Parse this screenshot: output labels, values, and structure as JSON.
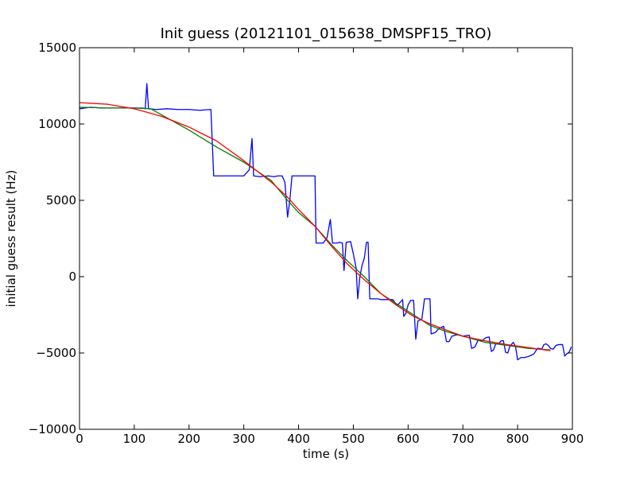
{
  "chart_data": {
    "type": "line",
    "title": "Init guess (20121101_015638_DMSPF15_TRO)",
    "xlabel": "time (s)",
    "ylabel": "initial guess result (Hz)",
    "xlim": [
      0,
      900
    ],
    "ylim": [
      -10000,
      15000
    ],
    "xticks": [
      "0",
      "100",
      "200",
      "300",
      "400",
      "500",
      "600",
      "700",
      "800",
      "900"
    ],
    "yticks": [
      "15000",
      "10000",
      "5000",
      "0",
      "−5000",
      "−10000"
    ],
    "grid": false,
    "legend": "none",
    "series": [
      {
        "color": "#0000ff",
        "points": [
          [
            0,
            11000
          ],
          [
            10,
            11050
          ],
          [
            20,
            11100
          ],
          [
            40,
            11050
          ],
          [
            80,
            11050
          ],
          [
            115,
            11050
          ],
          [
            120,
            11000
          ],
          [
            123,
            12650
          ],
          [
            126,
            11000
          ],
          [
            140,
            10950
          ],
          [
            160,
            11000
          ],
          [
            180,
            10950
          ],
          [
            200,
            10950
          ],
          [
            220,
            10900
          ],
          [
            238,
            10950
          ],
          [
            240,
            10950
          ],
          [
            245,
            6600
          ],
          [
            260,
            6600
          ],
          [
            280,
            6600
          ],
          [
            300,
            6600
          ],
          [
            310,
            7000
          ],
          [
            315,
            9050
          ],
          [
            318,
            6600
          ],
          [
            330,
            6550
          ],
          [
            345,
            6600
          ],
          [
            355,
            6550
          ],
          [
            362,
            6600
          ],
          [
            370,
            6600
          ],
          [
            375,
            6200
          ],
          [
            380,
            3900
          ],
          [
            384,
            5000
          ],
          [
            388,
            6600
          ],
          [
            400,
            6600
          ],
          [
            415,
            6600
          ],
          [
            430,
            6600
          ],
          [
            432,
            2200
          ],
          [
            445,
            2200
          ],
          [
            452,
            2550
          ],
          [
            458,
            3750
          ],
          [
            462,
            2200
          ],
          [
            470,
            2200
          ],
          [
            475,
            2250
          ],
          [
            480,
            2200
          ],
          [
            483,
            400
          ],
          [
            487,
            2250
          ],
          [
            495,
            2300
          ],
          [
            500,
            1500
          ],
          [
            505,
            600
          ],
          [
            508,
            -1450
          ],
          [
            512,
            0
          ],
          [
            516,
            750
          ],
          [
            520,
            1200
          ],
          [
            524,
            2250
          ],
          [
            527,
            2250
          ],
          [
            530,
            -1450
          ],
          [
            540,
            -1450
          ],
          [
            545,
            -1450
          ],
          [
            550,
            -1500
          ],
          [
            558,
            -1500
          ],
          [
            565,
            -1500
          ],
          [
            572,
            -1500
          ],
          [
            580,
            -1900
          ],
          [
            585,
            -1700
          ],
          [
            590,
            -1500
          ],
          [
            592,
            -2600
          ],
          [
            596,
            -2400
          ],
          [
            600,
            -1850
          ],
          [
            605,
            -1550
          ],
          [
            610,
            -1550
          ],
          [
            614,
            -4100
          ],
          [
            618,
            -2900
          ],
          [
            625,
            -2800
          ],
          [
            630,
            -1450
          ],
          [
            640,
            -1450
          ],
          [
            642,
            -3750
          ],
          [
            650,
            -3650
          ],
          [
            656,
            -3400
          ],
          [
            662,
            -3300
          ],
          [
            665,
            -3250
          ],
          [
            670,
            -4250
          ],
          [
            675,
            -4250
          ],
          [
            680,
            -3900
          ],
          [
            690,
            -3800
          ],
          [
            700,
            -3900
          ],
          [
            708,
            -3850
          ],
          [
            712,
            -3850
          ],
          [
            716,
            -4700
          ],
          [
            722,
            -4600
          ],
          [
            728,
            -4150
          ],
          [
            735,
            -4200
          ],
          [
            742,
            -4000
          ],
          [
            748,
            -3950
          ],
          [
            752,
            -4900
          ],
          [
            756,
            -4800
          ],
          [
            760,
            -4400
          ],
          [
            765,
            -4400
          ],
          [
            770,
            -4200
          ],
          [
            774,
            -4200
          ],
          [
            778,
            -4950
          ],
          [
            782,
            -5000
          ],
          [
            786,
            -4550
          ],
          [
            792,
            -4300
          ],
          [
            796,
            -4550
          ],
          [
            800,
            -5450
          ],
          [
            806,
            -5300
          ],
          [
            812,
            -5300
          ],
          [
            818,
            -5250
          ],
          [
            825,
            -5150
          ],
          [
            830,
            -5050
          ],
          [
            836,
            -4700
          ],
          [
            840,
            -4700
          ],
          [
            844,
            -4750
          ],
          [
            848,
            -4450
          ],
          [
            852,
            -4400
          ],
          [
            856,
            -4500
          ],
          [
            860,
            -4700
          ],
          [
            865,
            -4750
          ],
          [
            870,
            -4500
          ],
          [
            876,
            -4450
          ],
          [
            882,
            -4450
          ],
          [
            886,
            -5200
          ],
          [
            890,
            -5050
          ],
          [
            894,
            -4950
          ],
          [
            898,
            -4600
          ]
        ]
      },
      {
        "color": "#008000",
        "points": [
          [
            0,
            11100
          ],
          [
            50,
            11050
          ],
          [
            100,
            11050
          ],
          [
            130,
            11000
          ],
          [
            160,
            10400
          ],
          [
            200,
            9600
          ],
          [
            250,
            8500
          ],
          [
            300,
            7500
          ],
          [
            350,
            6300
          ],
          [
            380,
            5000
          ],
          [
            400,
            4200
          ],
          [
            430,
            3300
          ],
          [
            460,
            2100
          ],
          [
            490,
            1000
          ],
          [
            520,
            0
          ],
          [
            550,
            -1100
          ],
          [
            580,
            -1800
          ],
          [
            610,
            -2500
          ],
          [
            640,
            -3200
          ],
          [
            670,
            -3600
          ],
          [
            700,
            -3900
          ],
          [
            740,
            -4300
          ],
          [
            780,
            -4500
          ],
          [
            820,
            -4700
          ],
          [
            860,
            -4800
          ]
        ]
      },
      {
        "color": "#ff0000",
        "points": [
          [
            0,
            11400
          ],
          [
            50,
            11300
          ],
          [
            100,
            11000
          ],
          [
            150,
            10500
          ],
          [
            200,
            9800
          ],
          [
            250,
            8900
          ],
          [
            300,
            7600
          ],
          [
            350,
            6200
          ],
          [
            380,
            5200
          ],
          [
            400,
            4400
          ],
          [
            430,
            3300
          ],
          [
            460,
            2000
          ],
          [
            490,
            800
          ],
          [
            520,
            -200
          ],
          [
            550,
            -1100
          ],
          [
            580,
            -1900
          ],
          [
            610,
            -2600
          ],
          [
            640,
            -3100
          ],
          [
            670,
            -3500
          ],
          [
            700,
            -3900
          ],
          [
            740,
            -4200
          ],
          [
            780,
            -4450
          ],
          [
            820,
            -4650
          ],
          [
            860,
            -4850
          ]
        ]
      }
    ]
  }
}
